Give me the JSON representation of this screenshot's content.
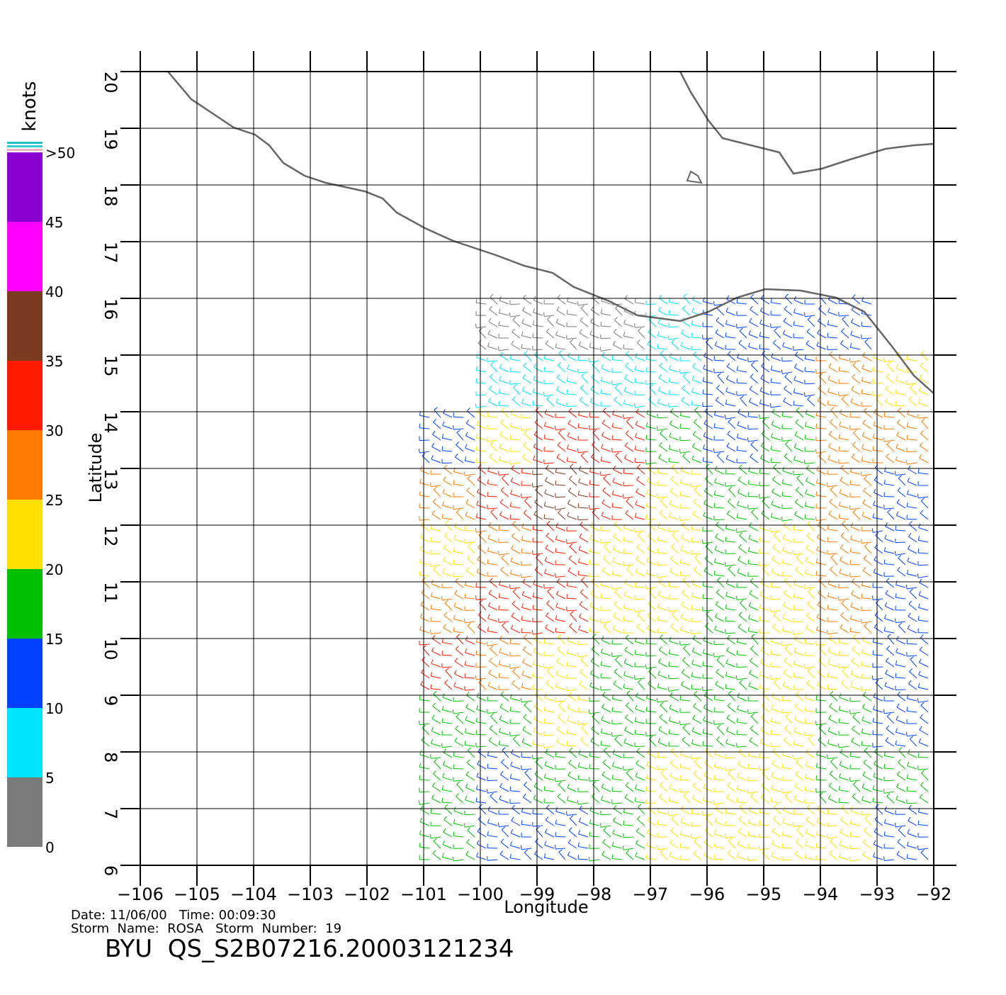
{
  "chart_data": {
    "type": "wind",
    "xlabel": "Longitude",
    "ylabel": "Latitude",
    "xlim": [
      -106,
      -92
    ],
    "ylim": [
      6,
      20
    ],
    "xticks": [
      {
        "value": -106,
        "label": "−106"
      },
      {
        "value": -105,
        "label": "−105"
      },
      {
        "value": -104,
        "label": "−104"
      },
      {
        "value": -103,
        "label": "−103"
      },
      {
        "value": -102,
        "label": "−102"
      },
      {
        "value": -101,
        "label": "−101"
      },
      {
        "value": -100,
        "label": "−100"
      },
      {
        "value": -99,
        "label": "−99"
      },
      {
        "value": -98,
        "label": "−98"
      },
      {
        "value": -97,
        "label": "−97"
      },
      {
        "value": -96,
        "label": "−96"
      },
      {
        "value": -95,
        "label": "−95"
      },
      {
        "value": -94,
        "label": "−94"
      },
      {
        "value": -93,
        "label": "−93"
      },
      {
        "value": -92,
        "label": "−92"
      }
    ],
    "yticks": [
      6,
      7,
      8,
      9,
      10,
      11,
      12,
      13,
      14,
      15,
      16,
      17,
      18,
      19,
      20
    ],
    "grid": true,
    "colorbar": {
      "title": "knots",
      "ticks": [
        0,
        5,
        10,
        15,
        20,
        25,
        30,
        35,
        40,
        45,
        {
          "value": 50,
          "label": ">50"
        }
      ],
      "colors": [
        "#7a7a7a",
        "#00e5ff",
        "#0040ff",
        "#00c000",
        "#ffe000",
        "#ff7a00",
        "#ff1a00",
        "#7a3a20",
        "#ff00ff",
        "#8a00d0"
      ]
    },
    "grid_lons": [
      -100.5,
      -99.5,
      -98.5,
      -97.5,
      -96.5,
      -95.5,
      -94.5,
      -93.5,
      -92.5
    ],
    "grid_lats": [
      15.5,
      14.5,
      13.5,
      12.5,
      11.5,
      10.5,
      9.5,
      8.5,
      7.5,
      6.5
    ],
    "speeds": [
      [
        null,
        3,
        3,
        3,
        8,
        10,
        12,
        14,
        null
      ],
      [
        null,
        8,
        8,
        8,
        8,
        10,
        12,
        25,
        22
      ],
      [
        12,
        20,
        32,
        30,
        18,
        12,
        17,
        28,
        25
      ],
      [
        25,
        30,
        35,
        30,
        20,
        15,
        18,
        28,
        10
      ],
      [
        20,
        25,
        30,
        22,
        20,
        18,
        22,
        25,
        10
      ],
      [
        28,
        30,
        30,
        22,
        20,
        18,
        20,
        28,
        12
      ],
      [
        30,
        25,
        22,
        18,
        18,
        18,
        20,
        22,
        12
      ],
      [
        18,
        18,
        20,
        18,
        18,
        18,
        20,
        18,
        12
      ],
      [
        15,
        12,
        15,
        18,
        20,
        20,
        22,
        18,
        15
      ],
      [
        15,
        12,
        12,
        15,
        20,
        20,
        22,
        20,
        12
      ]
    ],
    "footer": {
      "line1": "Date: 11/06/00   Time: 00:09:30",
      "line2": "Storm  Name:  ROSA   Storm  Number:  19",
      "title": "BYU  QS_S2B07216.20003121234"
    }
  }
}
